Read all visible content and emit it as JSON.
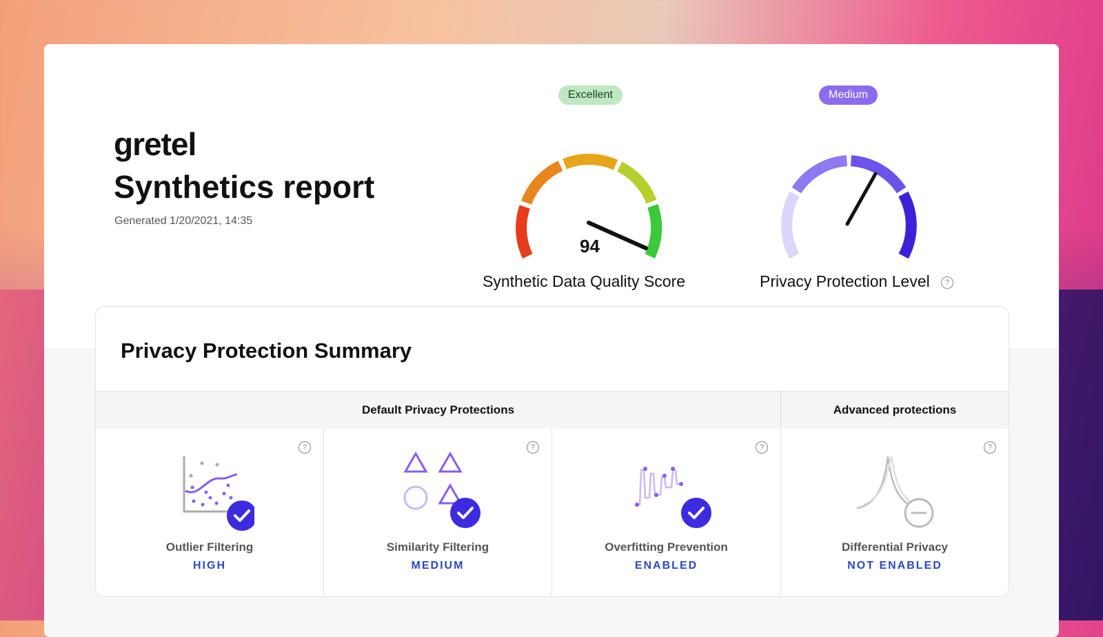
{
  "report": {
    "brand": "gretel",
    "title": "Synthetics report",
    "generated": "Generated 1/20/2021, 14:35"
  },
  "quality_gauge": {
    "badge": "Excellent",
    "score": "94",
    "label": "Synthetic Data Quality Score",
    "badge_color": "#bfe8c0"
  },
  "privacy_gauge": {
    "badge": "Medium",
    "label": "Privacy Protection Level",
    "help_icon": "question-circle-icon",
    "badge_color": "#8b6cf0"
  },
  "summary": {
    "title": "Privacy Protection Summary",
    "default_header": "Default Privacy Protections",
    "advanced_header": "Advanced protections",
    "tiles": [
      {
        "name": "Outlier Filtering",
        "value": "HIGH",
        "icon": "outlier-chart-icon",
        "check_icon": "check-circle-icon"
      },
      {
        "name": "Similarity Filtering",
        "value": "MEDIUM",
        "icon": "shapes-icon",
        "check_icon": "check-circle-icon"
      },
      {
        "name": "Overfitting Prevention",
        "value": "ENABLED",
        "icon": "wave-chart-icon",
        "check_icon": "check-circle-icon"
      },
      {
        "name": "Differential Privacy",
        "value": "NOT ENABLED",
        "icon": "distribution-icon",
        "status_icon": "minus-circle-icon"
      }
    ]
  },
  "colors": {
    "accent": "#3d2be0",
    "value_text": "#2a48c5"
  }
}
